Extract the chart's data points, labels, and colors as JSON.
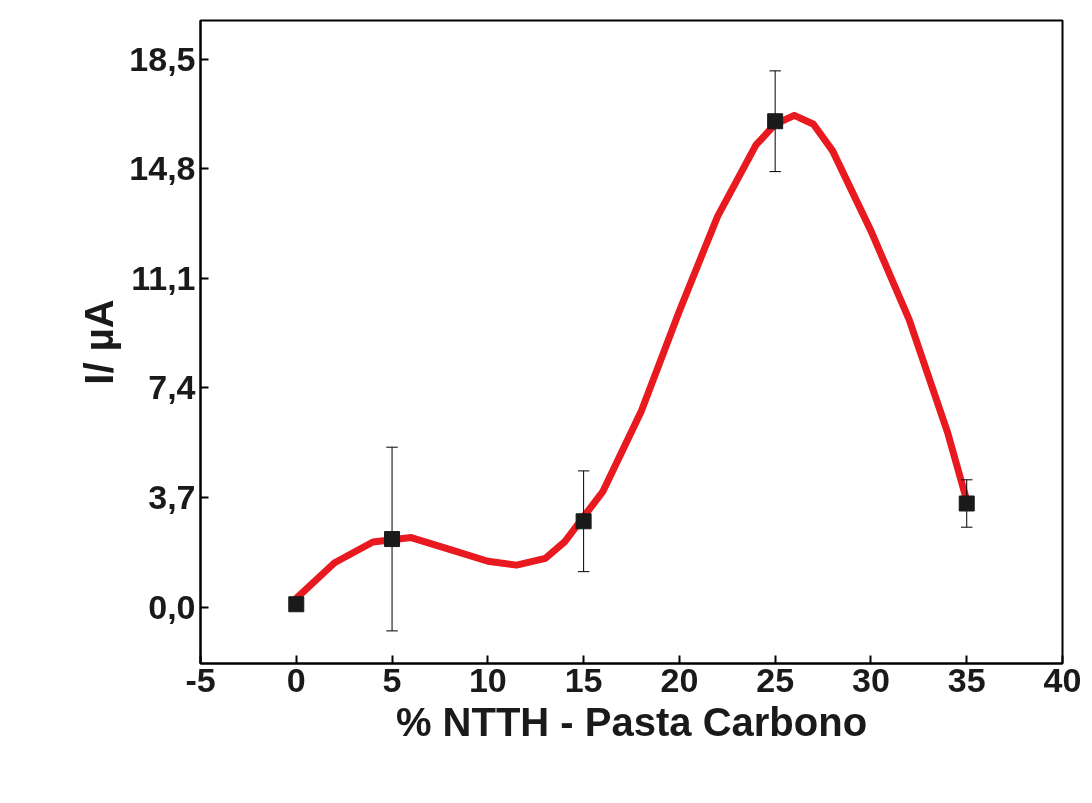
{
  "chart_data": {
    "type": "scatter",
    "xlabel": "% NTTH - Pasta Carbono",
    "ylabel": "I/ µA",
    "xlim": [
      -5,
      40
    ],
    "ylim": [
      -1.9,
      19.8
    ],
    "xticks": [
      {
        "value": -5,
        "label": "-5"
      },
      0,
      5,
      10,
      15,
      20,
      25,
      30,
      35,
      40
    ],
    "yticks": [
      {
        "value": 0,
        "label": "0,0"
      },
      {
        "value": 3.7,
        "label": "3,7"
      },
      {
        "value": 7.4,
        "label": "7,4"
      },
      {
        "value": 11.1,
        "label": "11,1"
      },
      {
        "value": 14.8,
        "label": "14,8"
      },
      {
        "value": 18.5,
        "label": "18,5"
      }
    ],
    "grid": false,
    "series": [
      {
        "type": "line",
        "marker": "none",
        "color": "#e8191f",
        "line_style": "solid",
        "x": [
          0,
          2,
          4,
          6,
          8,
          10,
          11.5,
          13,
          14,
          16,
          18,
          20,
          22,
          24,
          25,
          26,
          27,
          28,
          30,
          32,
          34,
          35
        ],
        "values": [
          0.3,
          1.5,
          2.2,
          2.35,
          1.95,
          1.55,
          1.42,
          1.65,
          2.2,
          3.9,
          6.6,
          10.0,
          13.2,
          15.6,
          16.3,
          16.6,
          16.3,
          15.4,
          12.7,
          9.7,
          5.9,
          3.6
        ]
      },
      {
        "marker": "square",
        "color": "#1a1a1a",
        "x": [
          0,
          5,
          15,
          25,
          35
        ],
        "values": [
          0.1,
          2.3,
          2.9,
          16.4,
          3.5
        ],
        "errors": [
          null,
          3.1,
          1.7,
          1.7,
          0.8
        ]
      }
    ]
  }
}
